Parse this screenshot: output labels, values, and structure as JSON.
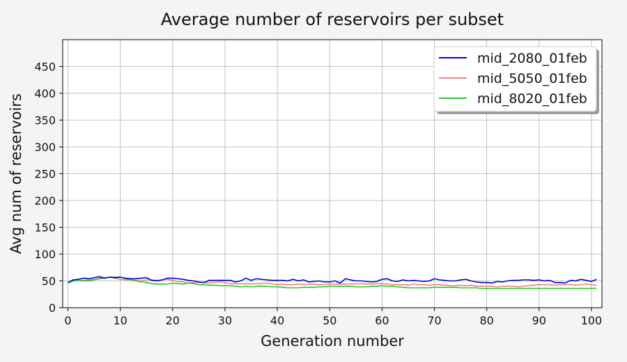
{
  "chart_data": {
    "type": "line",
    "title": "Average number of reservoirs per subset",
    "xlabel": "Generation number",
    "ylabel": "Avg num of reservoirs",
    "xlim": [
      -1,
      102
    ],
    "ylim": [
      0,
      500
    ],
    "xticks": [
      0,
      10,
      20,
      30,
      40,
      50,
      60,
      70,
      80,
      90,
      100
    ],
    "yticks": [
      0,
      50,
      100,
      150,
      200,
      250,
      300,
      350,
      400,
      450
    ],
    "grid": true,
    "legend_position": "top-right",
    "x": [
      0,
      1,
      2,
      3,
      4,
      5,
      6,
      7,
      8,
      9,
      10,
      11,
      12,
      13,
      14,
      15,
      16,
      17,
      18,
      19,
      20,
      21,
      22,
      23,
      24,
      25,
      26,
      27,
      28,
      29,
      30,
      31,
      32,
      33,
      34,
      35,
      36,
      37,
      38,
      39,
      40,
      41,
      42,
      43,
      44,
      45,
      46,
      47,
      48,
      49,
      50,
      51,
      52,
      53,
      54,
      55,
      56,
      57,
      58,
      59,
      60,
      61,
      62,
      63,
      64,
      65,
      66,
      67,
      68,
      69,
      70,
      71,
      72,
      73,
      74,
      75,
      76,
      77,
      78,
      79,
      80,
      81,
      82,
      83,
      84,
      85,
      86,
      87,
      88,
      89,
      90,
      91,
      92,
      93,
      94,
      95,
      96,
      97,
      98,
      99,
      100,
      101
    ],
    "series": [
      {
        "name": "mid_2080_01feb",
        "color": "#0000dd",
        "values": [
          47,
          52,
          53,
          55,
          54,
          56,
          58,
          55,
          57,
          56,
          57,
          55,
          54,
          54,
          55,
          56,
          51,
          50,
          52,
          55,
          55,
          54,
          53,
          51,
          50,
          48,
          47,
          51,
          51,
          51,
          51,
          51,
          48,
          50,
          55,
          51,
          54,
          53,
          52,
          51,
          51,
          51,
          50,
          53,
          50,
          52,
          48,
          49,
          50,
          48,
          48,
          50,
          46,
          54,
          52,
          50,
          50,
          49,
          48,
          49,
          53,
          54,
          50,
          49,
          52,
          50,
          51,
          50,
          49,
          50,
          54,
          52,
          51,
          50,
          50,
          52,
          53,
          50,
          48,
          47,
          47,
          46,
          49,
          48,
          50,
          51,
          51,
          52,
          52,
          51,
          52,
          50,
          51,
          47,
          47,
          46,
          51,
          50,
          53,
          51,
          49,
          53
        ]
      },
      {
        "name": "mid_5050_01feb",
        "color": "#f08080",
        "values": [
          47,
          50,
          51,
          51,
          52,
          53,
          55,
          56,
          57,
          55,
          53,
          52,
          52,
          51,
          50,
          52,
          52,
          51,
          52,
          53,
          51,
          49,
          48,
          46,
          47,
          47,
          47,
          46,
          47,
          48,
          47,
          45,
          45,
          44,
          45,
          44,
          45,
          45,
          46,
          44,
          43,
          44,
          43,
          43,
          44,
          43,
          44,
          44,
          43,
          43,
          44,
          44,
          44,
          44,
          44,
          44,
          45,
          44,
          44,
          45,
          45,
          44,
          43,
          43,
          43,
          42,
          44,
          43,
          43,
          42,
          43,
          43,
          42,
          41,
          41,
          42,
          41,
          42,
          40,
          40,
          40,
          40,
          39,
          40,
          40,
          40,
          39,
          40,
          41,
          42,
          43,
          43,
          43,
          42,
          43,
          43,
          43,
          42,
          43,
          44,
          43,
          42
        ]
      },
      {
        "name": "mid_8020_01feb",
        "color": "#22cc22",
        "values": [
          46,
          50,
          51,
          50,
          50,
          52,
          54,
          55,
          57,
          57,
          57,
          54,
          52,
          50,
          48,
          47,
          45,
          44,
          44,
          44,
          46,
          45,
          44,
          46,
          45,
          43,
          43,
          42,
          42,
          41,
          41,
          41,
          40,
          39,
          40,
          39,
          40,
          40,
          40,
          39,
          39,
          38,
          37,
          37,
          37,
          38,
          38,
          38,
          39,
          39,
          40,
          40,
          40,
          40,
          40,
          39,
          39,
          39,
          40,
          40,
          41,
          40,
          40,
          39,
          38,
          37,
          37,
          37,
          37,
          37,
          38,
          38,
          38,
          38,
          38,
          37,
          37,
          37,
          37,
          36,
          36,
          36,
          36,
          36,
          36,
          36,
          36,
          36,
          36,
          36,
          36,
          36,
          36,
          36,
          36,
          36,
          36,
          36,
          36,
          36,
          36,
          36
        ]
      }
    ]
  }
}
